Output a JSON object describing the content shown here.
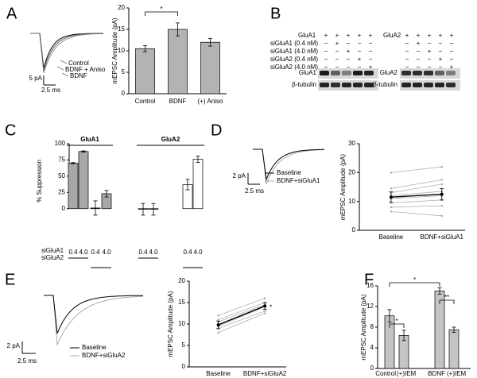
{
  "panel_labels": [
    "A",
    "B",
    "C",
    "D",
    "E",
    "F"
  ],
  "traces": [
    {
      "legend": [
        "Control",
        "BDNF + Aniso",
        "BDNF"
      ],
      "scale_y": "5 pA",
      "scale_x": "2.5 ms"
    },
    {
      "legend": [
        "Baseline",
        "BDNF+siGluA1"
      ],
      "scale_y": "2 pA",
      "scale_x": "2.5 ms"
    },
    {
      "legend": [
        "Baseline",
        "BDNF+siGluA2"
      ],
      "scale_y": "2 pA",
      "scale_x": "2.5 ms"
    }
  ],
  "blots": [
    {
      "header": "GluA1",
      "header_signs": [
        "+",
        "+",
        "+",
        "+",
        "+"
      ],
      "rows": [
        {
          "label": "siGluA1 (0.4 nM)",
          "signs": [
            "−",
            "+",
            "−",
            "−",
            "−"
          ]
        },
        {
          "label": "siGluA1 (4.0 nM)",
          "signs": [
            "−",
            "−",
            "+",
            "−",
            "−"
          ]
        },
        {
          "label": "siGluA2 (0.4 nM)",
          "signs": [
            "−",
            "−",
            "−",
            "+",
            "−"
          ]
        },
        {
          "label": "siGluA2 (4.0 nM)",
          "signs": [
            "−",
            "−",
            "−",
            "−",
            "+"
          ]
        }
      ],
      "bands": [
        "GluA1",
        "β-tubulin"
      ]
    },
    {
      "header": "GluA2",
      "header_signs": [
        "+",
        "+",
        "+",
        "+",
        "+"
      ],
      "rows": [
        {
          "signs": [
            "−",
            "+",
            "−",
            "−",
            "−"
          ]
        },
        {
          "signs": [
            "−",
            "−",
            "+",
            "−",
            "−"
          ]
        },
        {
          "signs": [
            "−",
            "−",
            "−",
            "+",
            "−"
          ]
        },
        {
          "signs": [
            "−",
            "−",
            "−",
            "−",
            "+"
          ]
        }
      ],
      "bands": [
        "GluA2",
        "β-tubulin"
      ]
    }
  ],
  "chart_data": [
    {
      "type": "bar",
      "ylabel": "mEPSC Amplitude (pA)",
      "categories": [
        "Control",
        "BDNF",
        "(+) Aniso"
      ],
      "values": [
        10.5,
        15,
        12
      ],
      "errors": [
        0.7,
        1.5,
        0.9
      ],
      "color": "#b3b3b3",
      "ylim": [
        0,
        20
      ],
      "yticks": [
        0,
        5,
        10,
        15,
        20
      ],
      "significance": [
        {
          "from": 0,
          "to": 1,
          "label": "*"
        }
      ]
    },
    {
      "type": "bar",
      "ylabel": "% Suppression",
      "categories": [
        "0.4",
        "4.0",
        "0.4",
        "4.0"
      ],
      "row_labels": [
        "siGluA1",
        "siGluA2"
      ],
      "series": [
        {
          "name": "GluA1",
          "color": "#a8a8a8",
          "values": [
            70,
            88,
            1,
            23
          ],
          "errors": [
            1,
            1,
            11,
            5
          ]
        },
        {
          "name": "GluA2",
          "color": "#ffffff",
          "values": [
            -1,
            -1,
            37,
            76
          ],
          "errors": [
            9,
            9,
            8,
            5
          ]
        }
      ],
      "ylim": [
        -15,
        100
      ],
      "yticks": [
        0,
        25,
        50,
        75,
        100
      ]
    },
    {
      "type": "paired",
      "ylabel": "mEPSC Amplitude (pA)",
      "categories": [
        "Baseline",
        "BDNF+siGluA1"
      ],
      "series_color": "#b0b0b0",
      "series": [
        {
          "values": [
            20,
            22
          ]
        },
        {
          "values": [
            14.5,
            17.5
          ]
        },
        {
          "values": [
            13,
            16
          ]
        },
        {
          "values": [
            12,
            13.5
          ]
        },
        {
          "values": [
            11,
            12
          ]
        },
        {
          "values": [
            9.5,
            10.5
          ]
        },
        {
          "values": [
            8,
            8.5
          ]
        },
        {
          "values": [
            6.5,
            5
          ]
        }
      ],
      "mean": {
        "values": [
          11.5,
          12.5
        ],
        "errors": [
          1.8,
          2
        ],
        "color": "#000000"
      },
      "ylim": [
        0,
        30
      ],
      "yticks": [
        0,
        10,
        20,
        30
      ]
    },
    {
      "type": "paired",
      "ylabel": "mEPSC Amplitude (pA)",
      "categories": [
        "Baseline",
        "BDNF+siGluA2"
      ],
      "series_color": "#b0b0b0",
      "series": [
        {
          "values": [
            8,
            12.5
          ]
        },
        {
          "values": [
            9,
            13
          ]
        },
        {
          "values": [
            9.5,
            14
          ]
        },
        {
          "values": [
            10.5,
            14.5
          ]
        },
        {
          "values": [
            11,
            15
          ]
        },
        {
          "values": [
            12,
            16
          ]
        }
      ],
      "mean": {
        "values": [
          9.8,
          14.2
        ],
        "errors": [
          0.9,
          0.8
        ],
        "color": "#000000"
      },
      "annotation": "*",
      "ylim": [
        0,
        20
      ],
      "yticks": [
        0,
        5,
        10,
        15,
        20
      ]
    },
    {
      "type": "bar",
      "ylabel": "mEPSC Amplitude (pA)",
      "categories": [
        "Control",
        "(+)IEM",
        "BDNF",
        "(+)IEM"
      ],
      "values": [
        10.2,
        6.4,
        15,
        7.5
      ],
      "errors": [
        1.2,
        1,
        0.6,
        0.5
      ],
      "color": "#c4c4c4",
      "ylim": [
        0,
        16
      ],
      "yticks": [
        0,
        4,
        8,
        12,
        16
      ],
      "significance": [
        {
          "from": 0,
          "to": 1,
          "label": "*"
        },
        {
          "from": 2,
          "to": 3,
          "label": "**"
        },
        {
          "from": 0,
          "to": 2,
          "label": "*"
        }
      ]
    }
  ]
}
